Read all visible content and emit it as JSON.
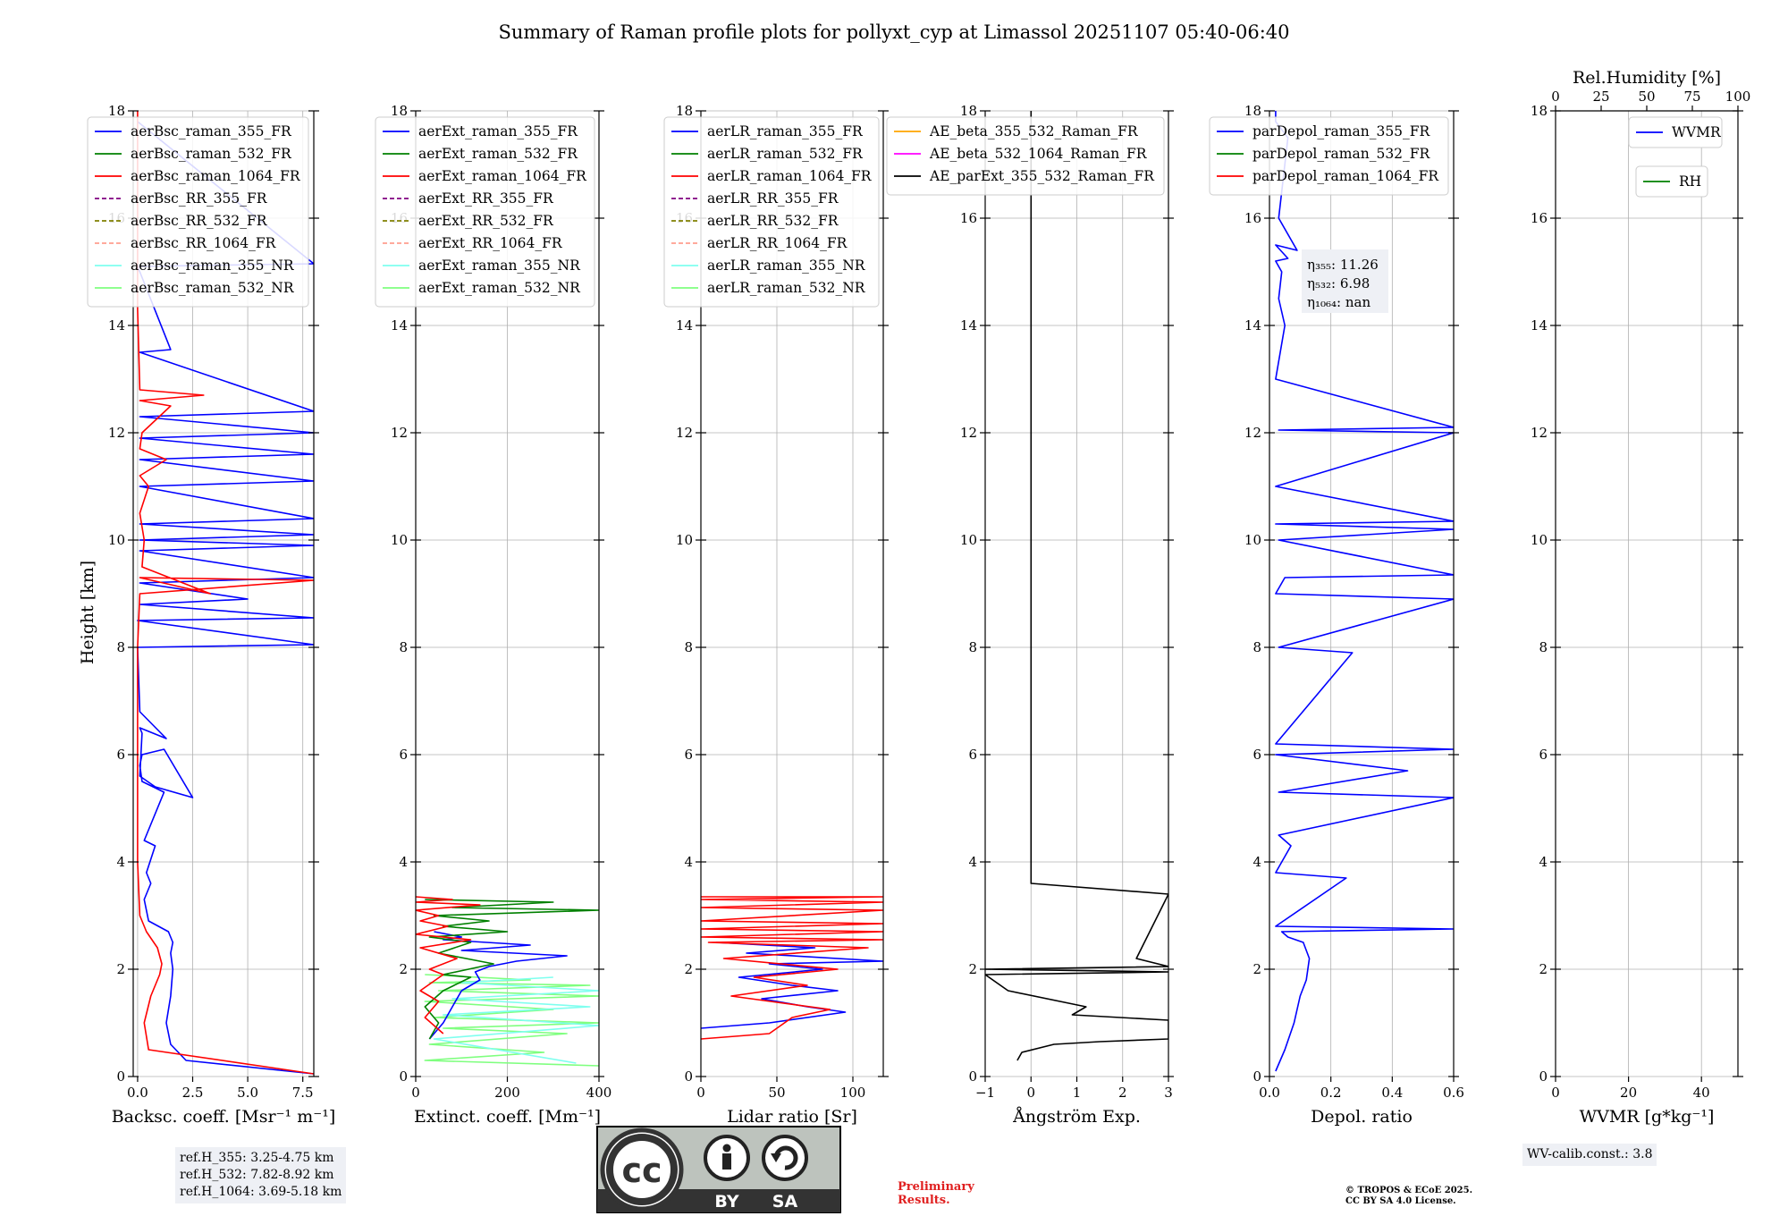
{
  "figure": {
    "title": "Summary of Raman profile plots for pollyxt_cyp at Limassol 20251107 05:40-06:40",
    "ylabel": "Height [km]"
  },
  "chart_data": [
    {
      "type": "line",
      "name": "backscatter",
      "xlabel": "Backsc. coeff. [Msr⁻¹ m⁻¹]",
      "xlim": [
        -0.2,
        8
      ],
      "ylim": [
        0,
        18
      ],
      "xticks": [
        0,
        2.5,
        5,
        7.5
      ],
      "xticklabels": [
        "0.0",
        "2.5",
        "5.0",
        "7.5"
      ],
      "yticks": [
        0,
        2,
        4,
        6,
        8,
        10,
        12,
        14,
        16,
        18
      ],
      "legend": [
        {
          "label": "aerBsc_raman_355_FR",
          "color": "#0000ff",
          "style": "solid"
        },
        {
          "label": "aerBsc_raman_532_FR",
          "color": "#008000",
          "style": "solid"
        },
        {
          "label": "aerBsc_raman_1064_FR",
          "color": "#ff0000",
          "style": "solid"
        },
        {
          "label": "aerBsc_RR_355_FR",
          "color": "#800080",
          "style": "dashed"
        },
        {
          "label": "aerBsc_RR_532_FR",
          "color": "#808000",
          "style": "dashed"
        },
        {
          "label": "aerBsc_RR_1064_FR",
          "color": "#ff9f8f",
          "style": "dashed"
        },
        {
          "label": "aerBsc_raman_355_NR",
          "color": "#7fffef",
          "style": "solid"
        },
        {
          "label": "aerBsc_raman_532_NR",
          "color": "#7fff7f",
          "style": "solid"
        }
      ],
      "series": [
        {
          "name": "aerBsc_raman_355_FR",
          "color": "#0000ff",
          "x": [
            8,
            2.2,
            1.5,
            1.3,
            1.5,
            1.6,
            1.5,
            1.6,
            1.4,
            0.5,
            0.3,
            0.6,
            0.4,
            0.8,
            0.3,
            1.2,
            0.2,
            0.1,
            0.2,
            1.2,
            2.5,
            0.8,
            0.1,
            0.2,
            0.1,
            1.3,
            0.1,
            0.0,
            8,
            0.0,
            8,
            0.1,
            5,
            0.1,
            8,
            0.1,
            8,
            0.1,
            8,
            0.1,
            8,
            0.1,
            8,
            0.1,
            8,
            0.1,
            8,
            0.1,
            8,
            0.1,
            1.5,
            0.1,
            0.0,
            8,
            0.0
          ],
          "y": [
            0.05,
            0.3,
            0.6,
            1.0,
            1.5,
            2.0,
            2.3,
            2.5,
            2.7,
            2.9,
            3.3,
            3.6,
            3.8,
            4.3,
            4.4,
            5.3,
            5.5,
            5.8,
            6.0,
            6.1,
            5.2,
            5.4,
            5.6,
            6.4,
            6.5,
            6.3,
            6.8,
            8.0,
            8.05,
            8.5,
            8.55,
            8.8,
            8.9,
            9.2,
            9.3,
            9.8,
            9.9,
            10.0,
            10.1,
            10.3,
            10.4,
            11.0,
            11.1,
            11.5,
            11.6,
            11.9,
            12.0,
            12.3,
            12.4,
            13.5,
            13.55,
            15.0,
            15.1,
            15.15,
            17.8
          ]
        },
        {
          "name": "aerBsc_raman_1064_FR",
          "color": "#ff0000",
          "x": [
            8,
            0.5,
            0.3,
            0.6,
            1.0,
            1.1,
            0.9,
            0.4,
            0.1,
            0.0,
            0.0,
            0.1,
            8,
            0.1,
            3.3,
            0.2,
            0.3,
            0.1,
            0.5,
            0.1,
            1.3,
            0.1,
            0.2,
            1.5,
            0.1,
            3.0,
            0.1,
            0.0,
            0.0
          ],
          "y": [
            0.05,
            0.5,
            1.0,
            1.5,
            1.9,
            2.1,
            2.4,
            2.7,
            3.0,
            4.0,
            8.0,
            9.0,
            9.25,
            9.3,
            9.0,
            9.5,
            10.0,
            10.5,
            11.0,
            11.2,
            11.5,
            11.7,
            12.0,
            12.5,
            12.6,
            12.7,
            12.8,
            14.3,
            18.0
          ]
        }
      ]
    },
    {
      "type": "line",
      "name": "extinction",
      "xlabel": "Extinct. coeff. [Mm⁻¹]",
      "xlim": [
        0,
        400
      ],
      "ylim": [
        0,
        18
      ],
      "xticks": [
        0,
        200,
        400
      ],
      "xticklabels": [
        "0",
        "200",
        "400"
      ],
      "yticks": [
        0,
        2,
        4,
        6,
        8,
        10,
        12,
        14,
        16,
        18
      ],
      "legend": [
        {
          "label": "aerExt_raman_355_FR",
          "color": "#0000ff",
          "style": "solid"
        },
        {
          "label": "aerExt_raman_532_FR",
          "color": "#008000",
          "style": "solid"
        },
        {
          "label": "aerExt_raman_1064_FR",
          "color": "#ff0000",
          "style": "solid"
        },
        {
          "label": "aerExt_RR_355_FR",
          "color": "#800080",
          "style": "dashed"
        },
        {
          "label": "aerExt_RR_532_FR",
          "color": "#808000",
          "style": "dashed"
        },
        {
          "label": "aerExt_RR_1064_FR",
          "color": "#ff9f8f",
          "style": "dashed"
        },
        {
          "label": "aerExt_raman_355_NR",
          "color": "#7fffef",
          "style": "solid"
        },
        {
          "label": "aerExt_raman_532_NR",
          "color": "#7fff7f",
          "style": "solid"
        }
      ],
      "series": [
        {
          "name": "aerExt_raman_532_NR",
          "color": "#7fff7f",
          "x": [
            400,
            20,
            280,
            30,
            330,
            60,
            400,
            40,
            300,
            20,
            400,
            50,
            380,
            30,
            250,
            20
          ],
          "y": [
            0.2,
            0.3,
            0.45,
            0.6,
            0.8,
            0.9,
            1.0,
            1.1,
            1.25,
            1.4,
            1.5,
            1.6,
            1.7,
            1.75,
            1.8,
            1.9
          ]
        },
        {
          "name": "aerExt_raman_355_NR",
          "color": "#7fffef",
          "x": [
            350,
            40,
            400,
            60,
            380,
            80,
            400,
            100,
            300
          ],
          "y": [
            0.25,
            0.7,
            0.95,
            1.15,
            1.3,
            1.45,
            1.6,
            1.75,
            1.85
          ]
        },
        {
          "name": "aerExt_raman_355_FR",
          "color": "#0000ff",
          "x": [
            30,
            60,
            80,
            100,
            140,
            130,
            160,
            220,
            330,
            100,
            250,
            60,
            100,
            40
          ],
          "y": [
            0.7,
            1.0,
            1.3,
            1.6,
            1.8,
            1.95,
            2.05,
            2.15,
            2.25,
            2.35,
            2.45,
            2.55,
            2.6,
            2.7
          ]
        },
        {
          "name": "aerExt_raman_532_FR",
          "color": "#008000",
          "x": [
            30,
            50,
            20,
            60,
            120,
            60,
            170,
            50,
            120,
            30,
            200,
            60,
            160,
            40,
            400,
            80,
            300,
            20
          ],
          "y": [
            0.7,
            1.0,
            1.3,
            1.6,
            1.85,
            1.9,
            2.1,
            2.3,
            2.5,
            2.6,
            2.7,
            2.8,
            2.9,
            3.0,
            3.1,
            3.15,
            3.25,
            3.3
          ]
        },
        {
          "name": "aerExt_raman_1064_FR",
          "color": "#ff0000",
          "x": [
            60,
            20,
            50,
            10,
            60,
            30,
            90,
            10,
            120,
            0,
            70,
            10,
            50,
            0,
            140,
            0,
            80,
            0
          ],
          "y": [
            0.8,
            1.1,
            1.4,
            1.6,
            1.9,
            2.0,
            2.2,
            2.4,
            2.55,
            2.65,
            2.8,
            2.9,
            3.0,
            3.1,
            3.2,
            3.25,
            3.3,
            3.35
          ]
        }
      ]
    },
    {
      "type": "line",
      "name": "lidar_ratio",
      "xlabel": "Lidar ratio [Sr]",
      "xlim": [
        0,
        120
      ],
      "ylim": [
        0,
        18
      ],
      "xticks": [
        0,
        50,
        100
      ],
      "xticklabels": [
        "0",
        "50",
        "100"
      ],
      "yticks": [
        0,
        2,
        4,
        6,
        8,
        10,
        12,
        14,
        16,
        18
      ],
      "legend": [
        {
          "label": "aerLR_raman_355_FR",
          "color": "#0000ff",
          "style": "solid"
        },
        {
          "label": "aerLR_raman_532_FR",
          "color": "#008000",
          "style": "solid"
        },
        {
          "label": "aerLR_raman_1064_FR",
          "color": "#ff0000",
          "style": "solid"
        },
        {
          "label": "aerLR_RR_355_FR",
          "color": "#800080",
          "style": "dashed"
        },
        {
          "label": "aerLR_RR_532_FR",
          "color": "#808000",
          "style": "dashed"
        },
        {
          "label": "aerLR_RR_1064_FR",
          "color": "#ff9f8f",
          "style": "dashed"
        },
        {
          "label": "aerLR_raman_355_NR",
          "color": "#7fffef",
          "style": "solid"
        },
        {
          "label": "aerLR_raman_532_NR",
          "color": "#7fff7f",
          "style": "solid"
        }
      ],
      "series": [
        {
          "name": "aerLR_raman_355_FR",
          "color": "#0000ff",
          "x": [
            0,
            45,
            95,
            70,
            40,
            90,
            60,
            25,
            80,
            45,
            120,
            30,
            75,
            10
          ],
          "y": [
            0.9,
            1.0,
            1.2,
            1.3,
            1.45,
            1.6,
            1.7,
            1.85,
            2.0,
            2.1,
            2.15,
            2.3,
            2.4,
            2.5
          ]
        },
        {
          "name": "aerLR_raman_1064_FR",
          "color": "#ff0000",
          "x": [
            0,
            45,
            60,
            85,
            20,
            70,
            35,
            90,
            15,
            110,
            5,
            120,
            0,
            120,
            0,
            120,
            0,
            120,
            0,
            120,
            0,
            120,
            0
          ],
          "y": [
            0.7,
            0.8,
            1.1,
            1.25,
            1.5,
            1.7,
            1.85,
            2.0,
            2.2,
            2.4,
            2.5,
            2.55,
            2.6,
            2.7,
            2.75,
            2.85,
            2.9,
            3.1,
            3.15,
            3.25,
            3.3,
            3.35,
            3.35
          ]
        }
      ]
    },
    {
      "type": "line",
      "name": "angstrom",
      "xlabel": "Ångström Exp.",
      "xlim": [
        -1,
        3
      ],
      "ylim": [
        0,
        18
      ],
      "xticks": [
        -1,
        0,
        1,
        2,
        3
      ],
      "xticklabels": [
        "−1",
        "0",
        "1",
        "2",
        "3"
      ],
      "yticks": [
        0,
        2,
        4,
        6,
        8,
        10,
        12,
        14,
        16,
        18
      ],
      "legend": [
        {
          "label": "AE_beta_355_532_Raman_FR",
          "color": "#ffa500",
          "style": "solid"
        },
        {
          "label": "AE_beta_532_1064_Raman_FR",
          "color": "#ff00ff",
          "style": "solid"
        },
        {
          "label": "AE_parExt_355_532_Raman_FR",
          "color": "#000000",
          "style": "solid"
        }
      ],
      "series": [
        {
          "name": "AE_parExt_355_532_Raman_FR",
          "color": "#000000",
          "x": [
            -0.3,
            -0.2,
            0.5,
            1.5,
            3.0,
            3.0,
            0.9,
            1.2,
            -0.5,
            -1.0,
            3.0,
            -1.0,
            3.0,
            2.3,
            3.0,
            0.0,
            0.0
          ],
          "y": [
            0.3,
            0.45,
            0.6,
            0.65,
            0.7,
            1.05,
            1.15,
            1.3,
            1.6,
            1.9,
            1.95,
            2.0,
            2.05,
            2.2,
            3.4,
            3.6,
            18.0
          ]
        }
      ]
    },
    {
      "type": "line",
      "name": "depolarization",
      "xlabel": "Depol. ratio",
      "xlim": [
        0,
        0.6
      ],
      "ylim": [
        0,
        18
      ],
      "xticks": [
        0,
        0.2,
        0.4,
        0.6
      ],
      "xticklabels": [
        "0.0",
        "0.2",
        "0.4",
        "0.6"
      ],
      "yticks": [
        0,
        2,
        4,
        6,
        8,
        10,
        12,
        14,
        16,
        18
      ],
      "legend": [
        {
          "label": "parDepol_raman_355_FR",
          "color": "#0000ff",
          "style": "solid"
        },
        {
          "label": "parDepol_raman_532_FR",
          "color": "#008000",
          "style": "solid"
        },
        {
          "label": "parDepol_raman_1064_FR",
          "color": "#ff0000",
          "style": "solid"
        }
      ],
      "annotation": [
        "η₃₅₅: 11.26",
        "η₅₃₂: 6.98",
        "η₁₀₆₄: nan"
      ],
      "series": [
        {
          "name": "parDepol_raman_355_FR",
          "color": "#0000ff",
          "x": [
            0.02,
            0.05,
            0.08,
            0.1,
            0.12,
            0.13,
            0.11,
            0.06,
            0.04,
            0.6,
            0.02,
            0.25,
            0.02,
            0.07,
            0.03,
            0.6,
            0.03,
            0.45,
            0.02,
            0.6,
            0.02,
            0.27,
            0.03,
            0.6,
            0.02,
            0.05,
            0.6,
            0.03,
            0.6,
            0.02,
            0.6,
            0.02,
            0.6,
            0.03,
            0.6,
            0.02,
            0.05,
            0.03,
            0.04,
            0.02,
            0.06,
            0.02,
            0.09,
            0.03,
            0.06,
            0.02,
            0.02
          ],
          "y": [
            0.1,
            0.5,
            1.0,
            1.5,
            1.8,
            2.2,
            2.5,
            2.6,
            2.7,
            2.75,
            2.8,
            3.7,
            3.8,
            4.3,
            4.5,
            5.2,
            5.3,
            5.7,
            6.0,
            6.1,
            6.2,
            7.9,
            8.0,
            8.9,
            9.0,
            9.3,
            9.35,
            10.0,
            10.2,
            10.3,
            10.35,
            11.0,
            12.0,
            12.05,
            12.1,
            13.0,
            14.0,
            14.5,
            15.0,
            15.2,
            15.25,
            15.5,
            15.4,
            16.0,
            17.5,
            17.8,
            18.0
          ]
        }
      ]
    },
    {
      "type": "line",
      "name": "wvmr",
      "xlabel": "WVMR [g*kg⁻¹]",
      "xlim": [
        0,
        50
      ],
      "ylim": [
        0,
        18
      ],
      "xticks": [
        0,
        20,
        40
      ],
      "xticklabels": [
        "0",
        "20",
        "40"
      ],
      "yticks": [
        0,
        2,
        4,
        6,
        8,
        10,
        12,
        14,
        16,
        18
      ],
      "top_axis": {
        "label": "Rel.Humidity [%]",
        "ticks": [
          0,
          25,
          50,
          75,
          100
        ],
        "ticklabels": [
          "0",
          "25",
          "50",
          "75",
          "100"
        ]
      },
      "legend": [
        {
          "label": "WVMR",
          "color": "#0000ff",
          "style": "solid"
        },
        {
          "label": "RH",
          "color": "#008000",
          "style": "solid"
        }
      ],
      "series": []
    }
  ],
  "info_boxes": {
    "ref_heights": [
      "ref.H_355: 3.25-4.75 km",
      "ref.H_532: 7.82-8.92 km",
      "ref.H_1064: 3.69-5.18 km"
    ],
    "wv_calib": "WV-calib.const.: 3.8"
  },
  "license_badge": {
    "left": "BY",
    "right": "SA",
    "cc": "cc"
  },
  "preliminary": [
    "Preliminary",
    "Results."
  ],
  "copyright": [
    "© TROPOS & ECoE 2025.",
    "CC BY SA 4.0 License."
  ]
}
